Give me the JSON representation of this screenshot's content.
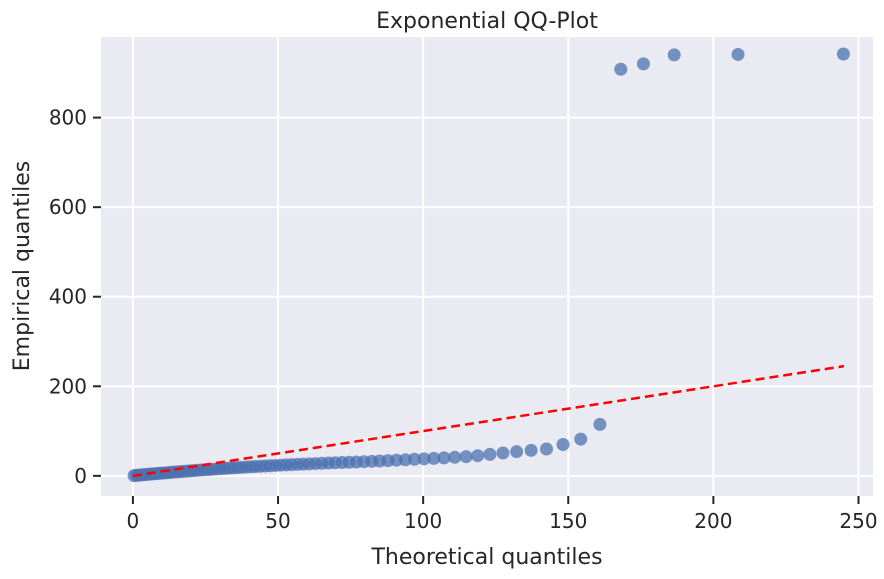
{
  "chart_data": {
    "type": "scatter",
    "title": "Exponential QQ-Plot",
    "xlabel": "Theoretical quantiles",
    "ylabel": "Empirical quantiles",
    "xlim": [
      -11,
      255
    ],
    "ylim": [
      -45,
      980
    ],
    "xticks": [
      0,
      50,
      100,
      150,
      200,
      250
    ],
    "yticks": [
      0,
      200,
      400,
      600,
      800
    ],
    "grid": true,
    "colors": {
      "background": "#eaeaf2",
      "grid": "#ffffff",
      "points": "#4c72b0",
      "reference_line": "#ff0000"
    },
    "reference_line": {
      "x": [
        0,
        245
      ],
      "y": [
        0,
        245
      ],
      "style": "dashed"
    },
    "points": {
      "x": [
        0.4,
        1.2,
        2.0,
        2.8,
        3.6,
        4.5,
        5.4,
        6.3,
        7.2,
        8.1,
        9.0,
        10.0,
        11.0,
        12.0,
        13.0,
        14.1,
        15.2,
        16.3,
        17.4,
        18.6,
        19.8,
        21.0,
        22.2,
        23.5,
        24.8,
        26.1,
        27.4,
        28.8,
        30.2,
        31.6,
        33.0,
        34.5,
        36.0,
        37.5,
        39.0,
        40.6,
        42.2,
        43.9,
        45.6,
        47.3,
        49.1,
        50.9,
        52.8,
        54.7,
        56.7,
        58.7,
        60.8,
        62.9,
        65.1,
        67.4,
        69.7,
        72.1,
        74.5,
        77.0,
        79.6,
        82.3,
        85.0,
        87.9,
        90.8,
        93.9,
        97.0,
        100.3,
        103.7,
        107.2,
        110.9,
        114.8,
        118.8,
        123.0,
        127.5,
        132.2,
        137.2,
        142.5,
        148.2,
        154.3,
        160.9,
        168.1,
        175.9,
        186.5,
        208.5,
        244.8
      ],
      "y": [
        0.5,
        1.0,
        1.5,
        2.0,
        2.5,
        3.0,
        3.5,
        4.0,
        4.5,
        5.0,
        5.5,
        6.0,
        6.5,
        7.0,
        7.6,
        8.2,
        8.8,
        9.4,
        10.0,
        10.6,
        11.2,
        11.8,
        12.4,
        13.0,
        13.6,
        14.2,
        14.8,
        15.4,
        16.0,
        16.6,
        17.2,
        17.8,
        18.4,
        19.0,
        19.6,
        20.2,
        20.8,
        21.4,
        22.0,
        22.6,
        23.2,
        23.8,
        24.4,
        25.0,
        25.6,
        26.2,
        26.8,
        27.4,
        28.0,
        28.6,
        29.2,
        29.8,
        30.4,
        31.0,
        31.6,
        32.4,
        33.2,
        34.0,
        35.0,
        36.0,
        37.0,
        38.0,
        39.0,
        40.0,
        41.5,
        43.0,
        45.0,
        48.0,
        51.0,
        54.0,
        57.0,
        60.0,
        70.0,
        82.0,
        115.0,
        908.0,
        920.0,
        940.0,
        941.0,
        942.0
      ]
    }
  }
}
